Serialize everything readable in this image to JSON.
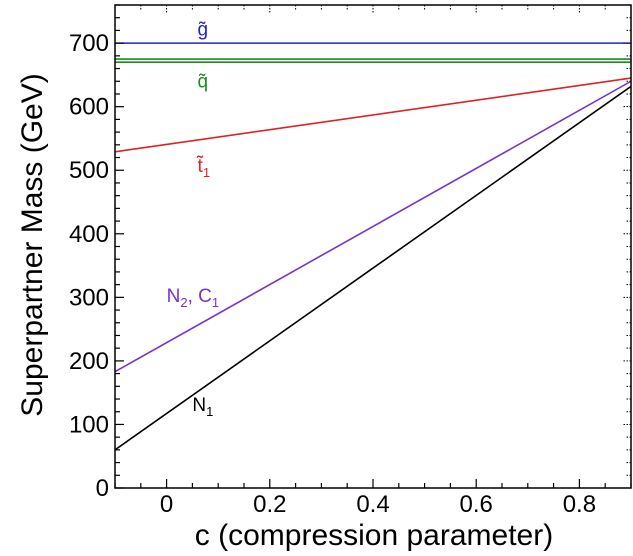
{
  "chart_data": {
    "type": "line",
    "title": "",
    "xlabel": "c (compression parameter)",
    "ylabel": "Superpartner Mass  (GeV)",
    "xlim": [
      -0.1,
      0.9
    ],
    "ylim": [
      0,
      760
    ],
    "x_ticks": [
      {
        "value": 0,
        "label": "0"
      },
      {
        "value": 0.2,
        "label": "0.2"
      },
      {
        "value": 0.4,
        "label": "0.4"
      },
      {
        "value": 0.6,
        "label": "0.6"
      },
      {
        "value": 0.8,
        "label": "0.8"
      }
    ],
    "y_ticks": [
      {
        "value": 0,
        "label": "0"
      },
      {
        "value": 100,
        "label": "100"
      },
      {
        "value": 200,
        "label": "200"
      },
      {
        "value": 300,
        "label": "300"
      },
      {
        "value": 400,
        "label": "400"
      },
      {
        "value": 500,
        "label": "500"
      },
      {
        "value": 600,
        "label": "600"
      },
      {
        "value": 700,
        "label": "700"
      }
    ],
    "grid": false,
    "legend": "none",
    "series": [
      {
        "id": "gluino",
        "label": {
          "main": "g̃",
          "sub": ""
        },
        "color": "#2222cc",
        "x": [
          -0.1,
          0.9
        ],
        "y": [
          700,
          700
        ],
        "label_at": {
          "x": 0.06,
          "y": 712
        }
      },
      {
        "id": "squark-upper",
        "label": {
          "main": "q̃",
          "sub": ""
        },
        "color": "#1a8c1a",
        "x": [
          -0.1,
          0.9
        ],
        "y": [
          675,
          675
        ],
        "label_at": {
          "x": 0.06,
          "y": 630
        }
      },
      {
        "id": "squark-lower",
        "label": {
          "main": "",
          "sub": ""
        },
        "color": "#1a8c1a",
        "x": [
          -0.1,
          0.9
        ],
        "y": [
          670,
          670
        ]
      },
      {
        "id": "stop",
        "label": {
          "main": "t̃",
          "sub": "1"
        },
        "color": "#dd2222",
        "x": [
          -0.1,
          0.9
        ],
        "y": [
          529,
          645
        ],
        "label_at": {
          "x": 0.06,
          "y": 497
        }
      },
      {
        "id": "neutralino2-chargino1",
        "label": {
          "main": "N",
          "sub": "2",
          "main2": ", C",
          "sub2": "1"
        },
        "color": "#7733cc",
        "x": [
          -0.1,
          0.9
        ],
        "y": [
          183,
          640
        ],
        "label_at": {
          "x": 0.0,
          "y": 293
        }
      },
      {
        "id": "neutralino1",
        "label": {
          "main": "N",
          "sub": "1"
        },
        "color": "#000000",
        "x": [
          -0.1,
          0.9
        ],
        "y": [
          60,
          632
        ],
        "label_at": {
          "x": 0.05,
          "y": 121
        }
      }
    ]
  }
}
